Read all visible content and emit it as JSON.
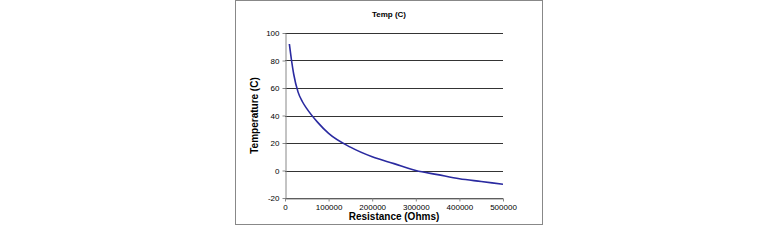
{
  "chart_data": {
    "type": "line",
    "title": "Temp (C)",
    "x_label": "Resistance (Ohms)",
    "y_label": "Temperature (C)",
    "x": [
      10000,
      15000,
      20000,
      30000,
      40000,
      50000,
      75000,
      100000,
      150000,
      200000,
      250000,
      300000,
      350000,
      400000,
      450000,
      500000
    ],
    "values": [
      92,
      80,
      70,
      57,
      50,
      45,
      35,
      27,
      17,
      10,
      5,
      0,
      -3,
      -6,
      -8,
      -10
    ],
    "color": "#2a2aa0",
    "xlim": [
      0,
      500000
    ],
    "xticks": [
      0,
      100000,
      200000,
      300000,
      400000,
      500000
    ],
    "ylim": [
      -20,
      100
    ],
    "yticks": [
      -20,
      0,
      20,
      40,
      60,
      80,
      100
    ],
    "grid": true
  }
}
